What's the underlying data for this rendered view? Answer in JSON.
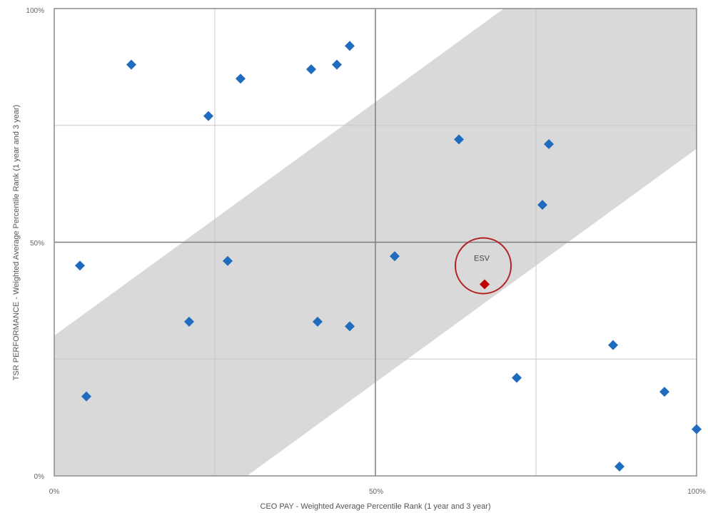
{
  "chart_data": {
    "type": "scatter",
    "title": "",
    "xlabel": "CEO PAY - Weighted Average Percentile Rank (1 year and 3 year)",
    "ylabel": "TSR PERFORMANCE - Weighted Average Percentile Rank (1 year and 3 year)",
    "xlim": [
      0,
      100
    ],
    "ylim": [
      0,
      100
    ],
    "x_ticks": [
      "0%",
      "50%",
      "100%"
    ],
    "y_ticks": [
      "0%",
      "50%",
      "100%"
    ],
    "grid": true,
    "alignment_band": {
      "description": "shaded diagonal band",
      "lower_edge": [
        [
          30,
          0
        ],
        [
          100,
          70
        ]
      ],
      "upper_edge": [
        [
          0,
          30
        ],
        [
          70,
          100
        ]
      ],
      "color": "#d9d9d9"
    },
    "series": [
      {
        "color": "#1f6bbd",
        "points": [
          [
            4,
            45
          ],
          [
            5,
            17
          ],
          [
            12,
            88
          ],
          [
            21,
            33
          ],
          [
            24,
            77
          ],
          [
            27,
            46
          ],
          [
            29,
            85
          ],
          [
            40,
            87
          ],
          [
            41,
            33
          ],
          [
            44,
            88
          ],
          [
            46,
            92
          ],
          [
            46,
            32
          ],
          [
            53,
            47
          ],
          [
            63,
            72
          ],
          [
            72,
            21
          ],
          [
            76,
            58
          ],
          [
            77,
            71
          ],
          [
            87,
            28
          ],
          [
            88,
            2
          ],
          [
            95,
            18
          ],
          [
            100,
            10
          ]
        ]
      },
      {
        "name": "ESV",
        "color": "#c00000",
        "points": [
          [
            67,
            41
          ]
        ]
      }
    ],
    "annotations": [
      {
        "text": "ESV",
        "circle_color": "#b22222"
      }
    ]
  }
}
